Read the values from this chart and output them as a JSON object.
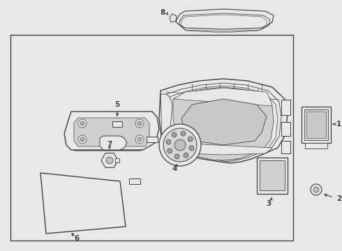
{
  "bg_color": "#e8e8e8",
  "box_bg": "#e8e8e8",
  "line_color": "#404040",
  "white": "#ffffff",
  "fig_width": 4.9,
  "fig_height": 3.6,
  "dpi": 100
}
